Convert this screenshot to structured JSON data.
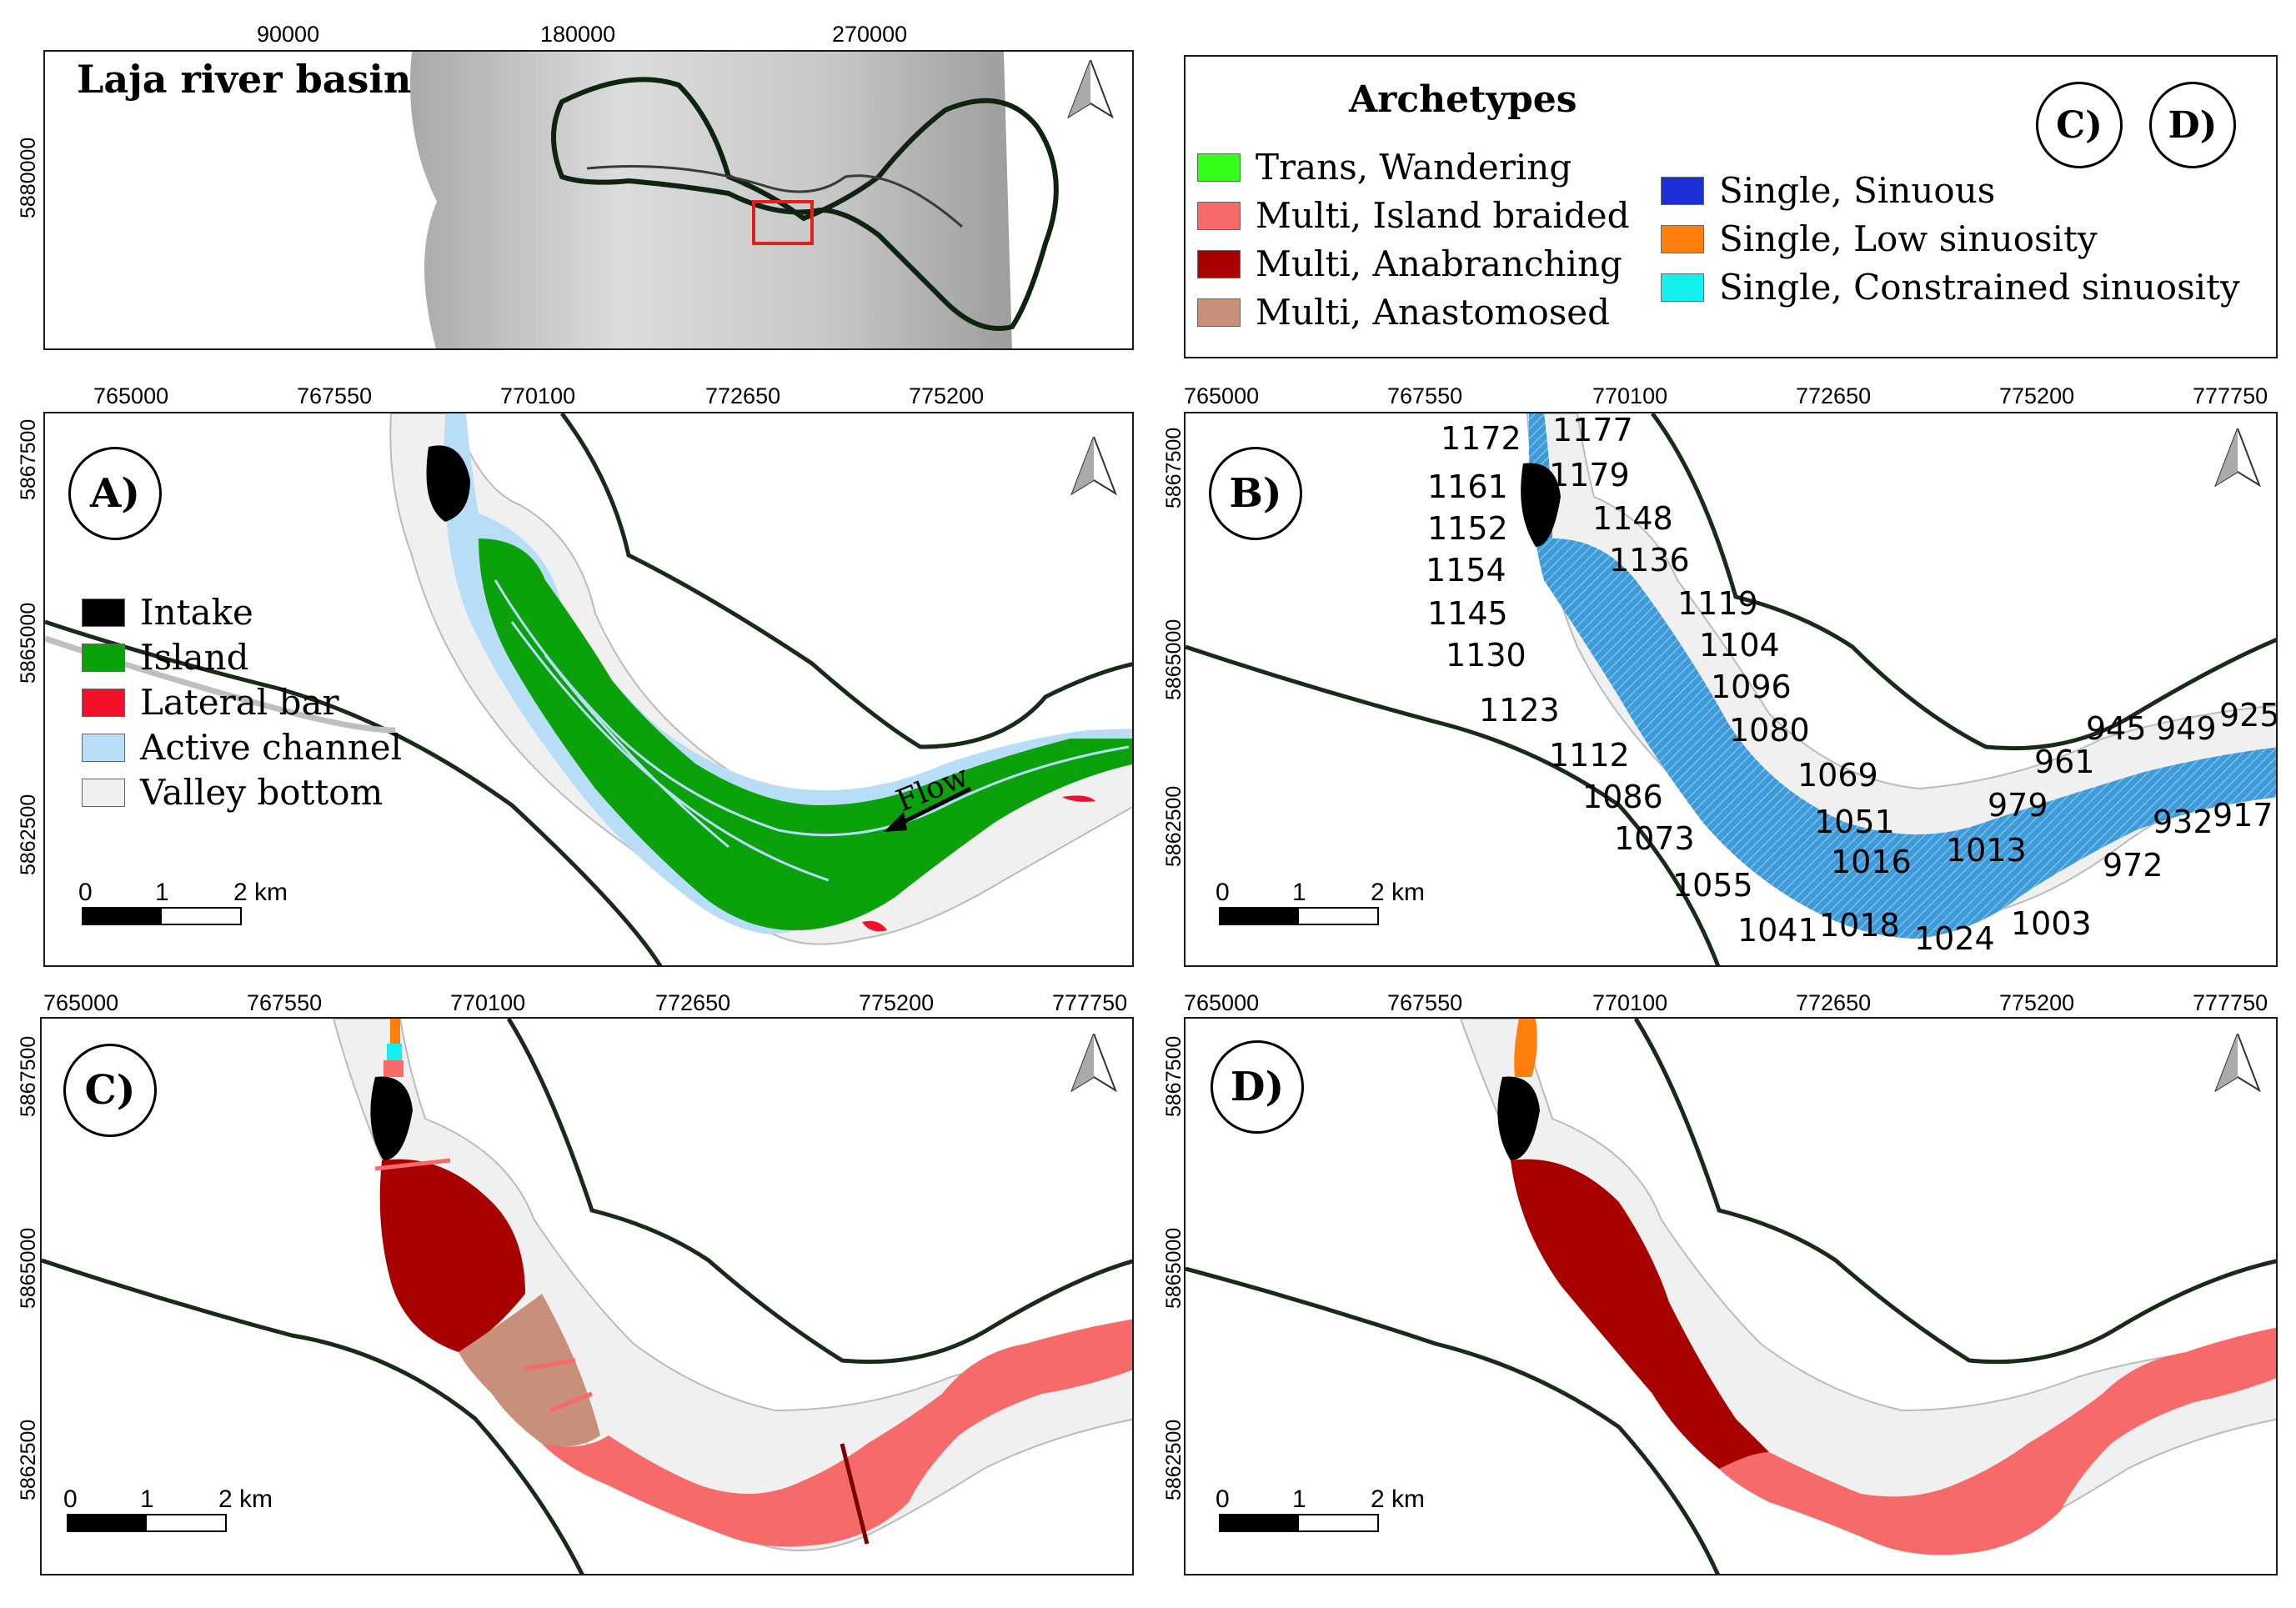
{
  "overview": {
    "title": "Laja river basin",
    "x_ticks": [
      "90000",
      "180000",
      "270000"
    ],
    "y_tick": "5880000"
  },
  "legend_archetypes": {
    "title": "Archetypes",
    "tags": [
      "C)",
      "D)"
    ],
    "items": [
      {
        "label": "Trans, Wandering",
        "color": "#33ff1a"
      },
      {
        "label": "Multi, Island braided",
        "color": "#f66a6a"
      },
      {
        "label": "Multi, Anabranching",
        "color": "#a80000"
      },
      {
        "label": "Multi, Anastomosed",
        "color": "#c8907a"
      },
      {
        "label": "Single, Sinuous",
        "color": "#1a2fd6"
      },
      {
        "label": "Single, Low sinuosity",
        "color": "#ff7f0e"
      },
      {
        "label": "Single, Constrained sinuosity",
        "color": "#14f0f0"
      }
    ]
  },
  "panel_a": {
    "tag": "A)",
    "x_ticks": [
      "765000",
      "767550",
      "770100",
      "772650",
      "775200"
    ],
    "y_ticks": [
      "5867500",
      "5865000",
      "5862500"
    ],
    "legend": [
      {
        "label": "Intake",
        "color": "#000000"
      },
      {
        "label": "Island",
        "color": "#0aa10a"
      },
      {
        "label": "Lateral bar",
        "color": "#f0102a"
      },
      {
        "label": "Active channel",
        "color": "#b8def7"
      },
      {
        "label": "Valley bottom",
        "color": "#f0f0f0"
      }
    ],
    "flow_label": "Flow"
  },
  "panel_b": {
    "tag": "B)",
    "x_ticks": [
      "765000",
      "767550",
      "770100",
      "772650",
      "775200",
      "777750"
    ],
    "y_ticks": [
      "5867500",
      "5865000",
      "5862500"
    ],
    "segments": [
      "1172",
      "1177",
      "1179",
      "1161",
      "1152",
      "1148",
      "1154",
      "1136",
      "1145",
      "1119",
      "1104",
      "1130",
      "1096",
      "1123",
      "1080",
      "1112",
      "1069",
      "1086",
      "1051",
      "1073",
      "1016",
      "1055",
      "1041",
      "1018",
      "1024",
      "1003",
      "1013",
      "979",
      "961",
      "945",
      "949",
      "925",
      "932",
      "917",
      "972"
    ]
  },
  "panel_c": {
    "tag": "C)",
    "x_ticks": [
      "765000",
      "767550",
      "770100",
      "772650",
      "775200",
      "777750"
    ],
    "y_ticks": [
      "5867500",
      "5865000",
      "5862500"
    ]
  },
  "panel_d": {
    "tag": "D)",
    "x_ticks": [
      "765000",
      "767550",
      "770100",
      "772650",
      "775200",
      "777750"
    ],
    "y_ticks": [
      "5867500",
      "5865000",
      "5862500"
    ]
  },
  "scalebar": {
    "labels": [
      "0",
      "1",
      "2 km"
    ]
  }
}
